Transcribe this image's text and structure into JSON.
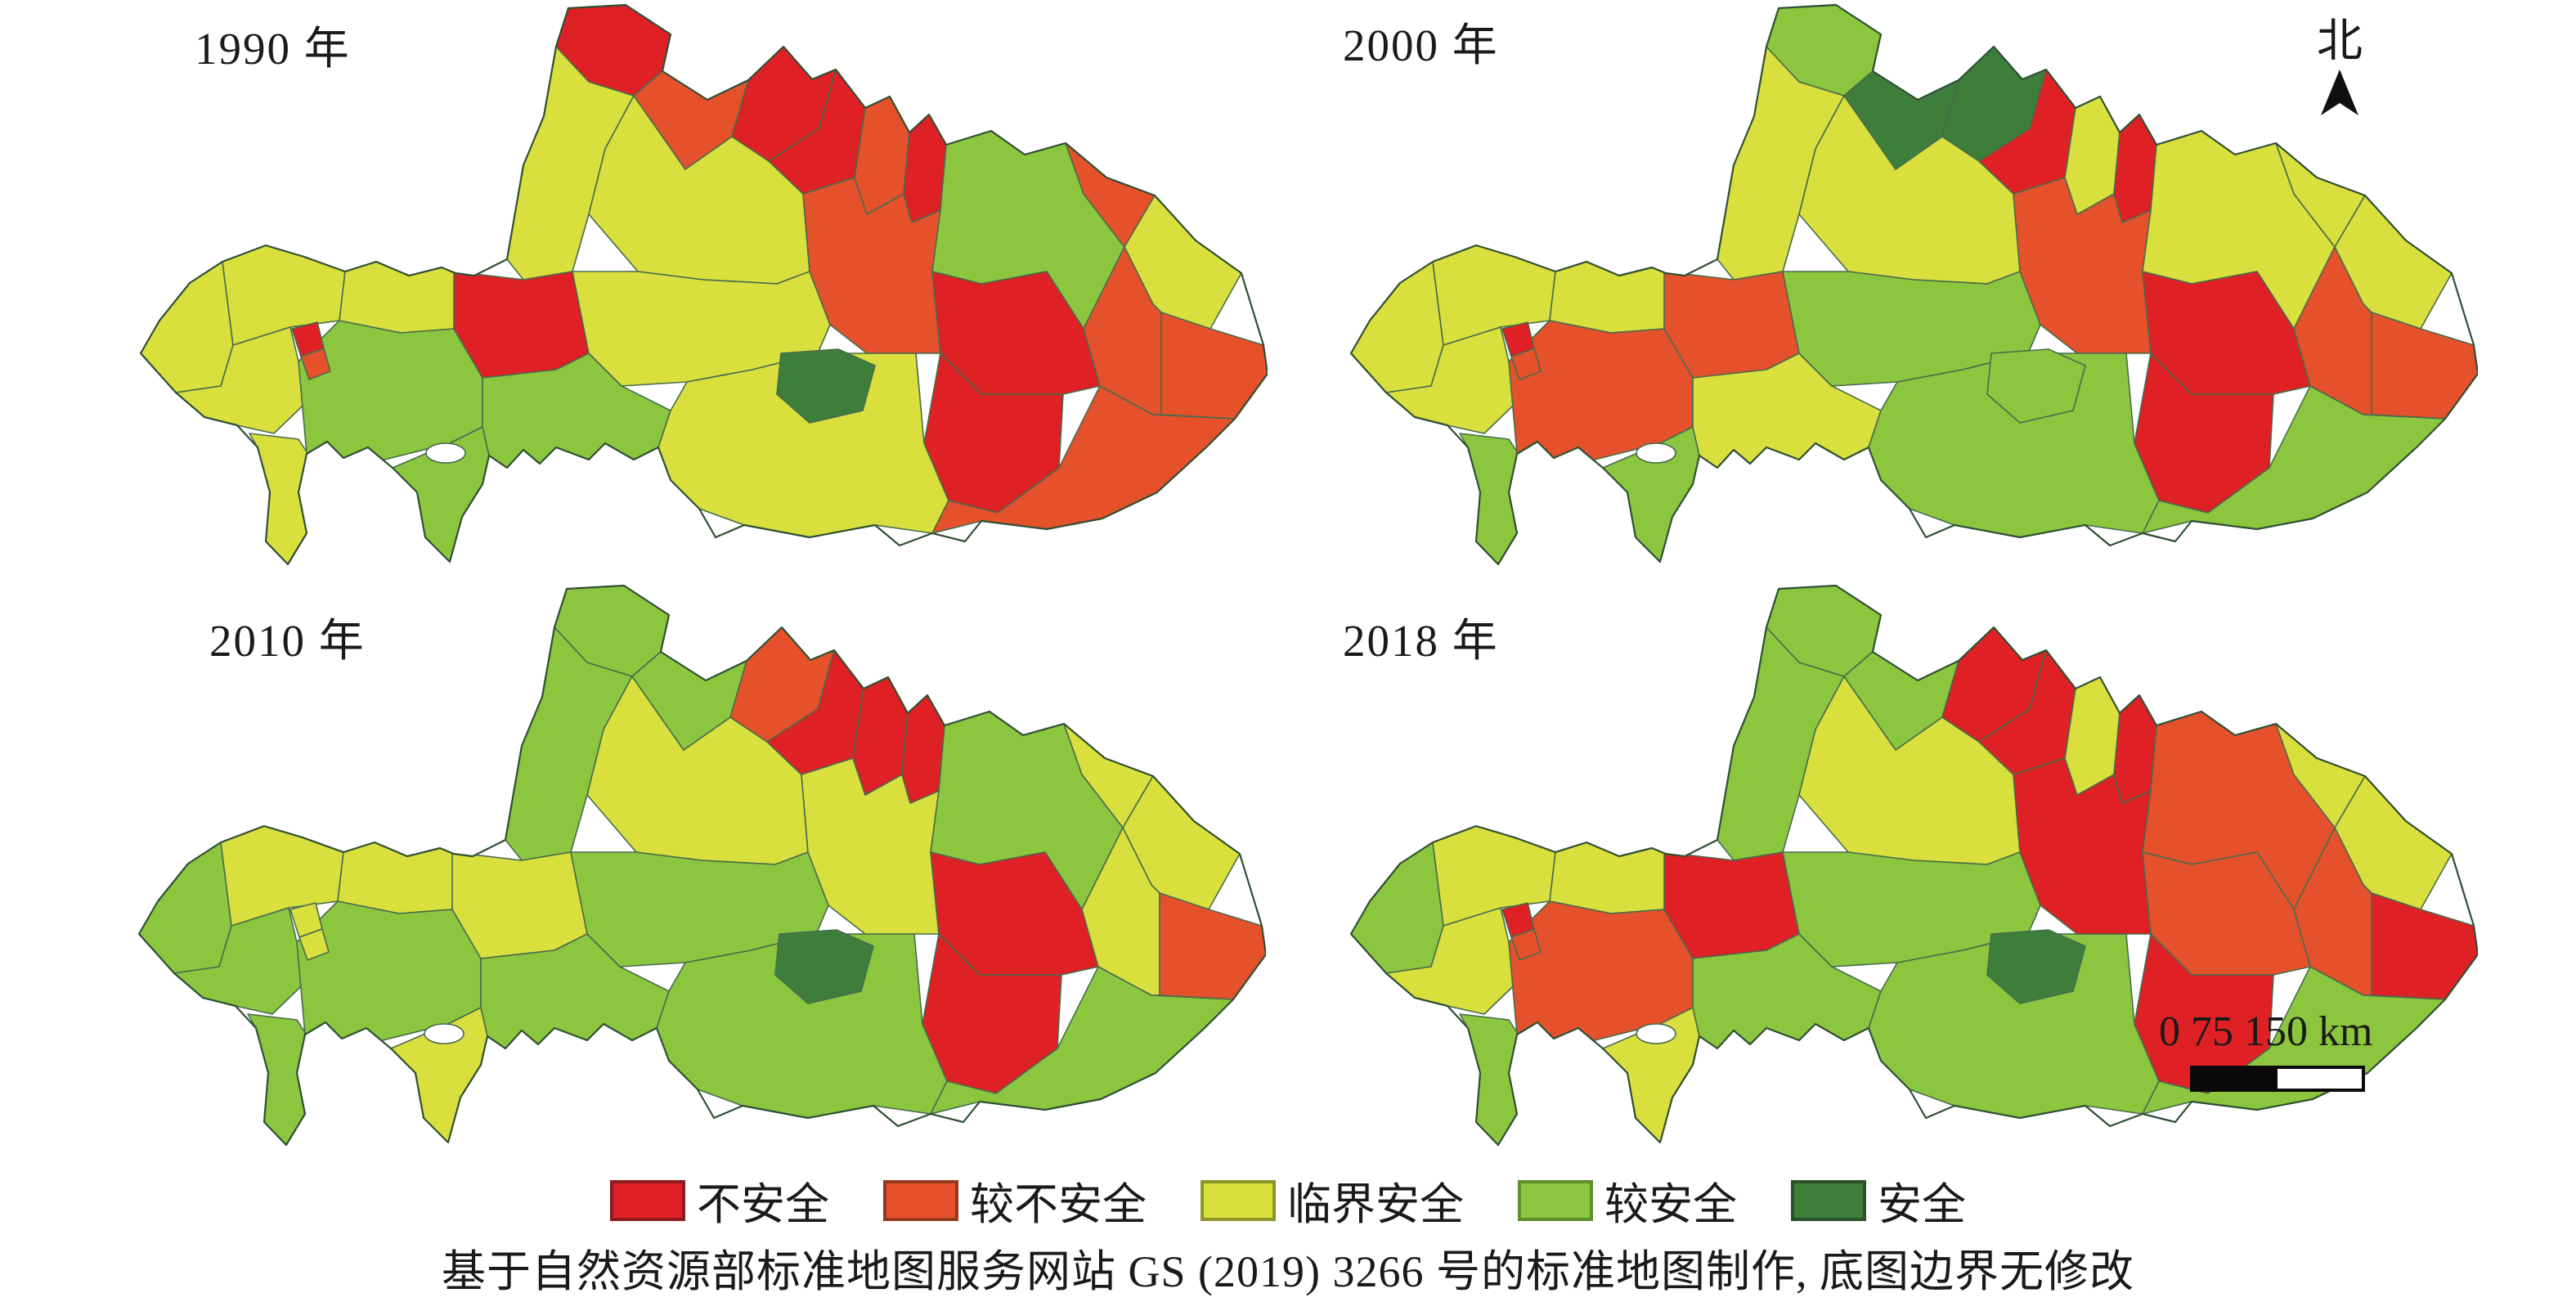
{
  "class_colors": {
    "R": "#df2024",
    "O": "#e5512a",
    "Y": "#d9df3c",
    "G": "#8cc63e",
    "D": "#3e7e3b"
  },
  "class_border": {
    "R": "#8f1b1d",
    "O": "#94391c",
    "Y": "#8e9426",
    "G": "#5d8f2b",
    "D": "#2a512a"
  },
  "map_stroke": "#476b4d",
  "map_outline_stroke": "#2f4f33",
  "maps": [
    {
      "year_label": "1990 年",
      "cells": [
        "R",
        "O",
        "R",
        "R",
        "O",
        "R",
        "G",
        "O",
        "Y",
        "R",
        "R",
        "O",
        "O",
        "O",
        "O",
        "Y",
        "Y",
        "Y",
        "Y",
        "R",
        "G",
        "Y",
        "Y",
        "Y",
        "Y",
        "Y",
        "G",
        "G",
        "D",
        "R",
        "O"
      ]
    },
    {
      "year_label": "2000 年",
      "cells": [
        "G",
        "D",
        "D",
        "R",
        "Y",
        "R",
        "Y",
        "Y",
        "Y",
        "R",
        "R",
        "O",
        "G",
        "O",
        "O",
        "G",
        "G",
        "Y",
        "Y",
        "O",
        "Y",
        "Y",
        "Y",
        "Y",
        "G",
        "Y",
        "O",
        "G",
        "G",
        "R",
        "O"
      ]
    },
    {
      "year_label": "2010 年",
      "cells": [
        "G",
        "G",
        "O",
        "R",
        "R",
        "R",
        "G",
        "Y",
        "Y",
        "R",
        "R",
        "Y",
        "G",
        "O",
        "Y",
        "G",
        "G",
        "Y",
        "G",
        "Y",
        "G",
        "G",
        "Y",
        "G",
        "G",
        "Y",
        "G",
        "Y",
        "D",
        "Y",
        "Y"
      ]
    },
    {
      "year_label": "2018 年",
      "cells": [
        "G",
        "G",
        "R",
        "R",
        "Y",
        "R",
        "O",
        "Y",
        "Y",
        "O",
        "R",
        "O",
        "G",
        "R",
        "R",
        "G",
        "G",
        "Y",
        "G",
        "R",
        "G",
        "G",
        "Y",
        "Y",
        "G",
        "Y",
        "O",
        "Y",
        "D",
        "R",
        "O"
      ]
    }
  ],
  "legend": {
    "items": [
      {
        "label": "不安全",
        "key": "R"
      },
      {
        "label": "较不安全",
        "key": "O"
      },
      {
        "label": "临界安全",
        "key": "Y"
      },
      {
        "label": "较安全",
        "key": "G"
      },
      {
        "label": "安全",
        "key": "D"
      }
    ]
  },
  "north_label": "北",
  "scale_bar": {
    "label": "0 75 150 km"
  },
  "caption": "基于自然资源部标准地图服务网站 GS (2019) 3266 号的标准地图制作, 底图边界无修改"
}
